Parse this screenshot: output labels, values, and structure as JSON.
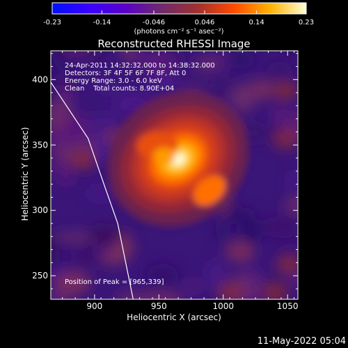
{
  "chart_data": {
    "type": "heatmap",
    "title": "Reconstructed RHESSI Image",
    "colorbar": {
      "min": -0.23,
      "max": 0.23,
      "ticks": [
        "-0.23",
        "-0.14",
        "-0.046",
        "0.046",
        "0.14",
        "0.23"
      ],
      "label": "(photons cm⁻² s⁻¹ asec⁻²)",
      "colormap": [
        "#0010ff",
        "#3a00ff",
        "#5a00c8",
        "#6e2a6e",
        "#a03030",
        "#ff4a00",
        "#ffb000",
        "#ffffd8"
      ]
    },
    "xlabel": "Heliocentric X (arcsec)",
    "ylabel": "Heliocentric Y (arcsec)",
    "xlim": [
      866,
      1058
    ],
    "ylim": [
      232,
      422
    ],
    "xticks": [
      900,
      950,
      1000,
      1050
    ],
    "yticks": [
      250,
      300,
      350,
      400
    ],
    "annotations": [
      "24-Apr-2011 14:32:32.000 to 14:38:32.000",
      "Detectors: 3F 4F 5F 6F 7F 8F, Att 0",
      "Energy Range: 3.0 - 6.0 keV",
      "Clean    Total counts: 8.90E+04"
    ],
    "peak_text": "Position of Peak = [965,339]",
    "peak": [
      965,
      339
    ],
    "limb_points": [
      [
        866,
        398
      ],
      [
        895,
        355
      ],
      [
        908,
        318
      ],
      [
        918,
        290
      ],
      [
        930,
        232
      ]
    ],
    "background_value": -0.03
  },
  "footer": {
    "date": "11-May-2022 05:04"
  }
}
